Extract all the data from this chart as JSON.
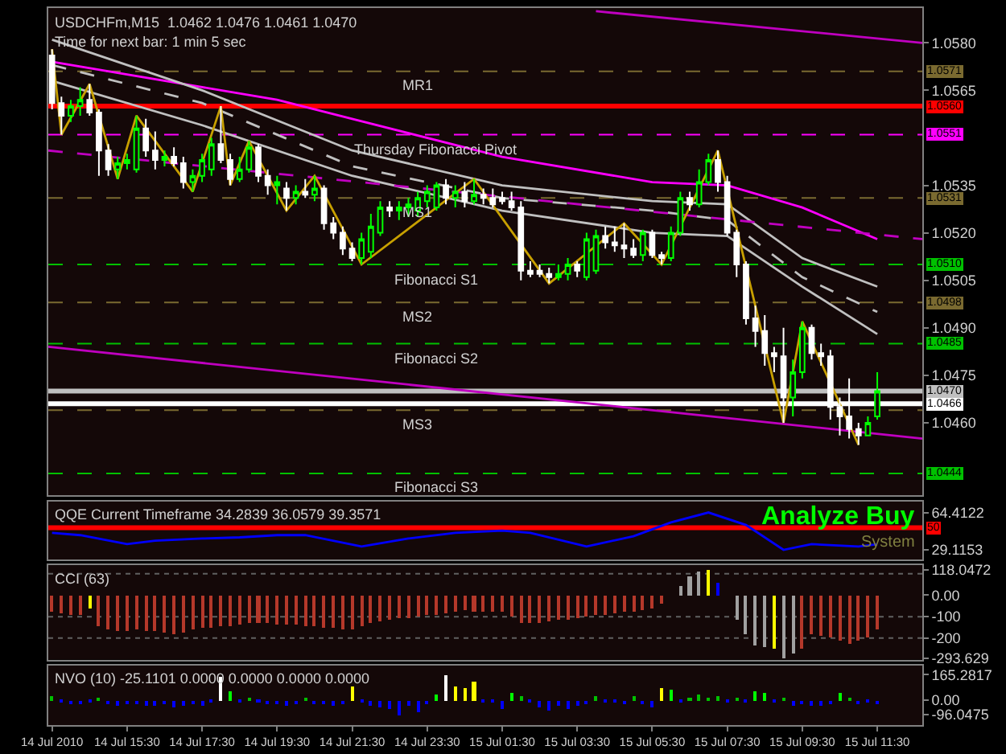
{
  "chart_data": [
    {
      "type": "candlestick",
      "title": "USDCHFm,M15  1.0462 1.0476 1.0461 1.0470",
      "subtitle": "Time for next bar: 1 min 5 sec",
      "x": [
        "2010-07-14T13:30",
        "2010-07-14T13:45",
        "2010-07-14T14:00",
        "2010-07-14T14:15",
        "2010-07-14T14:30",
        "2010-07-14T14:45",
        "2010-07-14T15:00",
        "2010-07-14T15:15",
        "2010-07-14T15:30",
        "2010-07-14T15:45",
        "2010-07-14T16:00",
        "2010-07-14T16:15",
        "2010-07-14T16:30",
        "2010-07-14T16:45",
        "2010-07-14T17:00",
        "2010-07-14T17:15",
        "2010-07-14T17:30",
        "2010-07-14T17:45",
        "2010-07-14T18:00",
        "2010-07-14T18:15",
        "2010-07-14T18:30",
        "2010-07-14T18:45",
        "2010-07-14T19:00",
        "2010-07-14T19:15",
        "2010-07-14T19:30",
        "2010-07-14T19:45",
        "2010-07-14T20:00",
        "2010-07-14T20:15",
        "2010-07-14T20:30",
        "2010-07-14T20:45",
        "2010-07-14T21:00",
        "2010-07-14T21:15",
        "2010-07-14T21:30",
        "2010-07-14T21:45",
        "2010-07-14T22:00",
        "2010-07-14T22:15",
        "2010-07-14T22:30",
        "2010-07-14T22:45",
        "2010-07-14T23:00",
        "2010-07-14T23:15",
        "2010-07-14T23:30",
        "2010-07-14T23:45",
        "2010-07-15T00:00",
        "2010-07-15T00:15",
        "2010-07-15T00:30",
        "2010-07-15T00:45",
        "2010-07-15T01:00",
        "2010-07-15T01:15",
        "2010-07-15T01:30",
        "2010-07-15T01:45",
        "2010-07-15T02:00",
        "2010-07-15T02:15",
        "2010-07-15T02:30",
        "2010-07-15T02:45",
        "2010-07-15T03:00",
        "2010-07-15T03:15",
        "2010-07-15T03:30",
        "2010-07-15T03:45",
        "2010-07-15T04:00",
        "2010-07-15T04:15",
        "2010-07-15T04:30",
        "2010-07-15T04:45",
        "2010-07-15T05:00",
        "2010-07-15T05:15",
        "2010-07-15T05:30",
        "2010-07-15T05:45",
        "2010-07-15T06:00",
        "2010-07-15T06:15",
        "2010-07-15T06:30",
        "2010-07-15T06:45",
        "2010-07-15T07:00",
        "2010-07-15T07:15",
        "2010-07-15T07:30",
        "2010-07-15T07:45",
        "2010-07-15T08:00",
        "2010-07-15T08:15",
        "2010-07-15T08:30",
        "2010-07-15T08:45",
        "2010-07-15T09:00",
        "2010-07-15T09:15",
        "2010-07-15T09:30",
        "2010-07-15T09:45",
        "2010-07-15T10:00",
        "2010-07-15T10:15",
        "2010-07-15T10:30",
        "2010-07-15T10:45",
        "2010-07-15T11:00",
        "2010-07-15T11:15",
        "2010-07-15T11:30"
      ],
      "ohlc": [
        [
          1.0576,
          1.0578,
          1.0559,
          1.0561
        ],
        [
          1.0561,
          1.0563,
          1.0551,
          1.0557
        ],
        [
          1.0557,
          1.0562,
          1.0555,
          1.056
        ],
        [
          1.056,
          1.0566,
          1.0557,
          1.0562
        ],
        [
          1.0562,
          1.0567,
          1.0557,
          1.0558
        ],
        [
          1.0558,
          1.0559,
          1.0538,
          1.0546
        ],
        [
          1.0546,
          1.0548,
          1.0538,
          1.054
        ],
        [
          1.054,
          1.0544,
          1.0537,
          1.0542
        ],
        [
          1.0542,
          1.0545,
          1.054,
          1.0543
        ],
        [
          1.054,
          1.0557,
          1.0539,
          1.0553
        ],
        [
          1.0553,
          1.0556,
          1.0544,
          1.0546
        ],
        [
          1.0546,
          1.0552,
          1.054,
          1.0543
        ],
        [
          1.0543,
          1.0546,
          1.0541,
          1.0544
        ],
        [
          1.0544,
          1.0547,
          1.0541,
          1.0542
        ],
        [
          1.0542,
          1.0544,
          1.0534,
          1.0536
        ],
        [
          1.0536,
          1.054,
          1.0533,
          1.0538
        ],
        [
          1.0538,
          1.0545,
          1.0536,
          1.0543
        ],
        [
          1.054,
          1.055,
          1.0538,
          1.0548
        ],
        [
          1.0548,
          1.056,
          1.0542,
          1.0543
        ],
        [
          1.0543,
          1.0545,
          1.0535,
          1.0537
        ],
        [
          1.0537,
          1.0544,
          1.0536,
          1.054
        ],
        [
          1.054,
          1.0549,
          1.0539,
          1.0547
        ],
        [
          1.0547,
          1.0548,
          1.0536,
          1.0538
        ],
        [
          1.0538,
          1.054,
          1.0532,
          1.0535
        ],
        [
          1.0535,
          1.0538,
          1.0529,
          1.0536
        ],
        [
          1.0534,
          1.0536,
          1.0527,
          1.0531
        ],
        [
          1.0531,
          1.0535,
          1.0529,
          1.0533
        ],
        [
          1.0533,
          1.0537,
          1.0531,
          1.0532
        ],
        [
          1.0532,
          1.0538,
          1.053,
          1.0534
        ],
        [
          1.0534,
          1.0535,
          1.0521,
          1.0523
        ],
        [
          1.0523,
          1.0525,
          1.0518,
          1.052
        ],
        [
          1.052,
          1.0522,
          1.0513,
          1.0515
        ],
        [
          1.0515,
          1.0517,
          1.0511,
          1.0512
        ],
        [
          1.0512,
          1.052,
          1.051,
          1.0518
        ],
        [
          1.0514,
          1.0526,
          1.0512,
          1.0522
        ],
        [
          1.052,
          1.053,
          1.0519,
          1.0528
        ],
        [
          1.0528,
          1.053,
          1.0525,
          1.0527
        ],
        [
          1.0527,
          1.053,
          1.0524,
          1.0528
        ],
        [
          1.0528,
          1.0531,
          1.0525,
          1.0529
        ],
        [
          1.0527,
          1.0533,
          1.0525,
          1.0531
        ],
        [
          1.053,
          1.0535,
          1.0528,
          1.0533
        ],
        [
          1.0528,
          1.0536,
          1.0527,
          1.0535
        ],
        [
          1.0535,
          1.0537,
          1.0529,
          1.0531
        ],
        [
          1.0531,
          1.0535,
          1.0528,
          1.0533
        ],
        [
          1.0533,
          1.0536,
          1.0528,
          1.053
        ],
        [
          1.053,
          1.0537,
          1.0529,
          1.0532
        ],
        [
          1.0532,
          1.0534,
          1.0529,
          1.0531
        ],
        [
          1.0531,
          1.0534,
          1.0528,
          1.0529
        ],
        [
          1.0531,
          1.0533,
          1.0529,
          1.053
        ],
        [
          1.053,
          1.0533,
          1.0527,
          1.0528
        ],
        [
          1.0528,
          1.053,
          1.0505,
          1.0508
        ],
        [
          1.0508,
          1.0511,
          1.0506,
          1.0507
        ],
        [
          1.0508,
          1.051,
          1.0506,
          1.0507
        ],
        [
          1.0507,
          1.0509,
          1.0504,
          1.0506
        ],
        [
          1.0506,
          1.051,
          1.0505,
          1.0507
        ],
        [
          1.0507,
          1.0512,
          1.0505,
          1.051
        ],
        [
          1.051,
          1.0511,
          1.0506,
          1.0508
        ],
        [
          1.0506,
          1.052,
          1.0505,
          1.0518
        ],
        [
          1.0508,
          1.0521,
          1.0507,
          1.0519
        ],
        [
          1.0519,
          1.0522,
          1.0515,
          1.0517
        ],
        [
          1.0517,
          1.0522,
          1.0514,
          1.0516
        ],
        [
          1.0516,
          1.0523,
          1.0512,
          1.0515
        ],
        [
          1.0515,
          1.0518,
          1.0512,
          1.0513
        ],
        [
          1.0513,
          1.0521,
          1.0511,
          1.052
        ],
        [
          1.052,
          1.0521,
          1.0512,
          1.0513
        ],
        [
          1.0513,
          1.0514,
          1.051,
          1.0512
        ],
        [
          1.0512,
          1.0522,
          1.0511,
          1.052
        ],
        [
          1.052,
          1.0533,
          1.0519,
          1.0531
        ],
        [
          1.0531,
          1.0533,
          1.0527,
          1.0529
        ],
        [
          1.0529,
          1.054,
          1.0528,
          1.0536
        ],
        [
          1.0536,
          1.0545,
          1.0535,
          1.0543
        ],
        [
          1.0543,
          1.0546,
          1.0533,
          1.0536
        ],
        [
          1.0536,
          1.0538,
          1.0519,
          1.052
        ],
        [
          1.052,
          1.0521,
          1.0506,
          1.051
        ],
        [
          1.051,
          1.0511,
          1.0491,
          1.0493
        ],
        [
          1.0493,
          1.0497,
          1.0484,
          1.0489
        ],
        [
          1.0489,
          1.0494,
          1.0478,
          1.0482
        ],
        [
          1.0482,
          1.0484,
          1.0476,
          1.0481
        ],
        [
          1.0481,
          1.049,
          1.046,
          1.0468
        ],
        [
          1.0468,
          1.048,
          1.0462,
          1.0476
        ],
        [
          1.0476,
          1.0492,
          1.0474,
          1.049
        ],
        [
          1.049,
          1.0491,
          1.048,
          1.0482
        ],
        [
          1.0482,
          1.0485,
          1.0478,
          1.0481
        ],
        [
          1.0481,
          1.0483,
          1.0461,
          1.0465
        ],
        [
          1.0465,
          1.0468,
          1.0456,
          1.0462
        ],
        [
          1.0462,
          1.0474,
          1.0455,
          1.0458
        ],
        [
          1.0458,
          1.046,
          1.0453,
          1.0456
        ],
        [
          1.0456,
          1.0462,
          1.0456,
          1.046
        ],
        [
          1.0462,
          1.0476,
          1.0461,
          1.047
        ]
      ],
      "colors": [
        "#ffffff",
        "#ffffff",
        "#00ff00",
        "#00ff00",
        "#ffffff",
        "#ffffff",
        "#ffffff",
        "#00ff00",
        "#00ff00",
        "#00ff00",
        "#ffffff",
        "#ffffff",
        "#00ff00",
        "#ffffff",
        "#ffffff",
        "#00ff00",
        "#00ff00",
        "#00ff00",
        "#ffffff",
        "#ffffff",
        "#00ff00",
        "#00ff00",
        "#ffffff",
        "#ffffff",
        "#00ff00",
        "#ffffff",
        "#00ff00",
        "#ffffff",
        "#00ff00",
        "#ffffff",
        "#ffffff",
        "#ffffff",
        "#ffffff",
        "#00ff00",
        "#00ff00",
        "#00ff00",
        "#ffffff",
        "#00ff00",
        "#00ff00",
        "#00ff00",
        "#00ff00",
        "#00ff00",
        "#ffffff",
        "#00ff00",
        "#ffffff",
        "#00ff00",
        "#ffffff",
        "#ffffff",
        "#ffffff",
        "#ffffff",
        "#ffffff",
        "#ffffff",
        "#ffffff",
        "#ffffff",
        "#00ff00",
        "#00ff00",
        "#ffffff",
        "#00ff00",
        "#00ff00",
        "#ffffff",
        "#ffffff",
        "#ffffff",
        "#ffffff",
        "#00ff00",
        "#ffffff",
        "#ffffff",
        "#00ff00",
        "#00ff00",
        "#ffffff",
        "#00ff00",
        "#00ff00",
        "#ffffff",
        "#ffffff",
        "#ffffff",
        "#ffffff",
        "#ffffff",
        "#ffffff",
        "#ffffff",
        "#ffffff",
        "#00ff00",
        "#00ff00",
        "#ffffff",
        "#ffffff",
        "#ffffff",
        "#ffffff",
        "#ffffff",
        "#ffffff",
        "#00ff00",
        "#00ff00"
      ],
      "series": [
        {
          "type": "line",
          "color": "#ff00ff",
          "x": [
            "2010-07-14T13:30",
            "2010-07-14T17:30",
            "2010-07-14T19:30",
            "2010-07-14T21:30",
            "2010-07-15T01:30",
            "2010-07-15T05:30",
            "2010-07-15T07:30",
            "2010-07-15T09:30",
            "2010-07-15T11:30"
          ],
          "values": [
            1.0574,
            1.0566,
            1.0562,
            1.0556,
            1.0544,
            1.0536,
            1.0535,
            1.0528,
            1.0518
          ]
        },
        {
          "type": "line",
          "color": "#c0c0c0",
          "x": [
            "2010-07-14T13:30",
            "2010-07-14T17:30",
            "2010-07-14T21:30",
            "2010-07-15T01:30",
            "2010-07-15T05:30",
            "2010-07-15T07:30",
            "2010-07-15T09:30",
            "2010-07-15T11:30"
          ],
          "values": [
            1.0581,
            1.0565,
            1.0546,
            1.0535,
            1.053,
            1.0529,
            1.0512,
            1.0503
          ]
        },
        {
          "type": "line",
          "color": "#c0c0c0",
          "line_style": "dashed",
          "x": [
            "2010-07-14T13:30",
            "2010-07-14T17:30",
            "2010-07-14T21:30",
            "2010-07-15T01:30",
            "2010-07-15T05:30",
            "2010-07-15T07:30",
            "2010-07-15T09:30",
            "2010-07-15T11:30"
          ],
          "values": [
            1.0573,
            1.0561,
            1.0541,
            1.0531,
            1.0527,
            1.0524,
            1.0506,
            1.0495
          ]
        },
        {
          "type": "line",
          "color": "#c0c0c0",
          "x": [
            "2010-07-14T13:30",
            "2010-07-14T17:30",
            "2010-07-14T21:30",
            "2010-07-15T01:30",
            "2010-07-15T05:30",
            "2010-07-15T07:30",
            "2010-07-15T09:30",
            "2010-07-15T11:30"
          ],
          "values": [
            1.0568,
            1.0554,
            1.0538,
            1.0527,
            1.052,
            1.0519,
            1.0503,
            1.0488
          ]
        },
        {
          "type": "line",
          "color": "#c000c0",
          "x": [
            "2010-07-15T04:00",
            "2010-07-15T12:42"
          ],
          "values": [
            1.059,
            1.058
          ]
        },
        {
          "type": "line",
          "color": "#c000c0",
          "x": [
            "2010-07-14T13:24",
            "2010-07-15T12:42"
          ],
          "values": [
            1.0484,
            1.0455
          ]
        },
        {
          "type": "line",
          "color": "#c000c0",
          "line_style": "dashed",
          "x": [
            "2010-07-14T13:24",
            "2010-07-15T12:42"
          ],
          "values": [
            1.0546,
            1.0518
          ]
        },
        {
          "type": "line",
          "color": "#c8a000",
          "x": [
            "2010-07-14T13:30",
            "2010-07-14T13:45",
            "2010-07-14T14:30",
            "2010-07-14T15:15",
            "2010-07-14T15:45",
            "2010-07-14T17:15",
            "2010-07-14T18:00",
            "2010-07-14T18:15",
            "2010-07-14T18:45",
            "2010-07-14T19:45",
            "2010-07-14T20:30",
            "2010-07-14T21:45",
            "2010-07-15T00:45",
            "2010-07-15T02:45",
            "2010-07-15T04:45",
            "2010-07-15T05:45",
            "2010-07-15T07:15",
            "2010-07-15T09:00",
            "2010-07-15T09:30",
            "2010-07-15T11:00"
          ],
          "values": [
            1.0578,
            1.0551,
            1.0567,
            1.0537,
            1.0557,
            1.0533,
            1.056,
            1.0535,
            1.0549,
            1.0527,
            1.0538,
            1.051,
            1.0537,
            1.0504,
            1.0523,
            1.051,
            1.0546,
            1.046,
            1.0492,
            1.0453
          ]
        }
      ],
      "ref_lines": [
        {
          "axis": "y",
          "value": 1.0571,
          "label": "1.0571",
          "color": "#7a6a30",
          "line_style": "dashed"
        },
        {
          "axis": "y",
          "value": 1.056,
          "label": "1.0560",
          "color": "#ff0000",
          "line_style": "solid"
        },
        {
          "axis": "y",
          "value": 1.0551,
          "label": "1.0551",
          "color": "#ff00ff",
          "line_style": "dashed"
        },
        {
          "axis": "y",
          "value": 1.0531,
          "label": "1.0531",
          "color": "#7a6a30",
          "line_style": "dashed"
        },
        {
          "axis": "y",
          "value": 1.051,
          "label": "1.0510",
          "color": "#00c000",
          "line_style": "dashed"
        },
        {
          "axis": "y",
          "value": 1.0498,
          "label": "1.0498",
          "color": "#7a6a30",
          "line_style": "dashed"
        },
        {
          "axis": "y",
          "value": 1.0485,
          "label": "1.0485",
          "color": "#00c000",
          "line_style": "dashed"
        },
        {
          "axis": "y",
          "value": 1.047,
          "label": "1.0470",
          "color": "#c0c0c0",
          "line_style": "solid"
        },
        {
          "axis": "y",
          "value": 1.0466,
          "label": "1.0466",
          "color": "#ffffff",
          "line_style": "solid"
        },
        {
          "axis": "y",
          "value": 1.0464,
          "label": null,
          "color": "#7a6a30",
          "line_style": "dashed"
        },
        {
          "axis": "y",
          "value": 1.0444,
          "label": "1.0444",
          "color": "#00c000",
          "line_style": "dashed"
        }
      ],
      "annotations": [
        {
          "text": "MR1",
          "x": "2010-07-14T23:15",
          "y": 1.0571
        },
        {
          "text": "Thursday Fibonacci Pivot",
          "x": "2010-07-14T23:45",
          "y": 1.0551
        },
        {
          "text": "MS1",
          "x": "2010-07-14T23:15",
          "y": 1.0531
        },
        {
          "text": "Fibonacci S1",
          "x": "2010-07-14T23:45",
          "y": 1.051
        },
        {
          "text": "MS2",
          "x": "2010-07-14T23:15",
          "y": 1.0498
        },
        {
          "text": "Fibonacci S2",
          "x": "2010-07-14T23:45",
          "y": 1.0485
        },
        {
          "text": "MS3",
          "x": "2010-07-14T23:15",
          "y": 1.0464
        },
        {
          "text": "Fibonacci S3",
          "x": "2010-07-14T23:45",
          "y": 1.0444
        }
      ],
      "xlim": [
        "2010-07-14T13:24",
        "2010-07-15T12:42"
      ],
      "ylim": [
        1.0437,
        1.0591
      ],
      "yticks": [
        {
          "value": 1.058,
          "label": "1.0580"
        },
        {
          "value": 1.0565,
          "label": "1.0565"
        },
        {
          "value": 1.0535,
          "label": "1.0535"
        },
        {
          "value": 1.052,
          "label": "1.0520"
        },
        {
          "value": 1.0505,
          "label": "1.0505"
        },
        {
          "value": 1.049,
          "label": "1.0490"
        },
        {
          "value": 1.0475,
          "label": "1.0475"
        },
        {
          "value": 1.046,
          "label": "1.0460"
        }
      ],
      "tick_labels": "y"
    },
    {
      "type": "line",
      "title": "QQE Current Timeframe 34.2839 36.0579 39.3571",
      "color": "#0000ff",
      "x": [
        "2010-07-14T13:30",
        "2010-07-14T14:15",
        "2010-07-14T15:30",
        "2010-07-14T16:15",
        "2010-07-14T17:30",
        "2010-07-14T18:30",
        "2010-07-14T19:30",
        "2010-07-14T20:15",
        "2010-07-14T21:45",
        "2010-07-14T23:00",
        "2010-07-15T00:15",
        "2010-07-15T01:30",
        "2010-07-15T02:15",
        "2010-07-15T03:45",
        "2010-07-15T05:00",
        "2010-07-15T06:00",
        "2010-07-15T07:00",
        "2010-07-15T08:00",
        "2010-07-15T09:00",
        "2010-07-15T09:45",
        "2010-07-15T11:00",
        "2010-07-15T11:30"
      ],
      "values": [
        45.2,
        43.0,
        34.5,
        37.7,
        39.8,
        40.9,
        43.0,
        43.0,
        32.3,
        39.8,
        45.2,
        47.3,
        45.2,
        32.3,
        41.9,
        55.0,
        64.4,
        52.6,
        29.1,
        34.5,
        32.3,
        34.3
      ],
      "ref_lines": [
        {
          "axis": "y",
          "value": 50,
          "label": "50",
          "color": "#ff0000",
          "line_style": "solid"
        }
      ],
      "annotations": [
        "Analyze Buy",
        "System"
      ],
      "xlim": [
        "2010-07-14T13:24",
        "2010-07-15T12:42"
      ],
      "ylim": [
        20,
        75
      ],
      "yticks": [
        64.4122,
        29.1153
      ],
      "tick_labels": "y"
    },
    {
      "type": "bar",
      "title": "CCI (63)",
      "x": [
        "2010-07-14T13:30",
        "2010-07-14T13:45",
        "2010-07-14T14:00",
        "2010-07-14T14:15",
        "2010-07-14T14:30",
        "2010-07-14T14:45",
        "2010-07-14T15:00",
        "2010-07-14T15:15",
        "2010-07-14T15:30",
        "2010-07-14T15:45",
        "2010-07-14T16:00",
        "2010-07-14T16:15",
        "2010-07-14T16:30",
        "2010-07-14T16:45",
        "2010-07-14T17:00",
        "2010-07-14T17:15",
        "2010-07-14T17:30",
        "2010-07-14T17:45",
        "2010-07-14T18:00",
        "2010-07-14T18:15",
        "2010-07-14T18:30",
        "2010-07-14T18:45",
        "2010-07-14T19:00",
        "2010-07-14T19:15",
        "2010-07-14T19:30",
        "2010-07-14T19:45",
        "2010-07-14T20:00",
        "2010-07-14T20:15",
        "2010-07-14T20:30",
        "2010-07-14T20:45",
        "2010-07-14T21:00",
        "2010-07-14T21:15",
        "2010-07-14T21:30",
        "2010-07-14T21:45",
        "2010-07-14T22:00",
        "2010-07-14T22:15",
        "2010-07-14T22:30",
        "2010-07-14T22:45",
        "2010-07-14T23:00",
        "2010-07-14T23:15",
        "2010-07-14T23:30",
        "2010-07-14T23:45",
        "2010-07-15T00:00",
        "2010-07-15T00:15",
        "2010-07-15T00:30",
        "2010-07-15T00:45",
        "2010-07-15T01:00",
        "2010-07-15T01:15",
        "2010-07-15T01:30",
        "2010-07-15T01:45",
        "2010-07-15T02:00",
        "2010-07-15T02:15",
        "2010-07-15T02:30",
        "2010-07-15T02:45",
        "2010-07-15T03:00",
        "2010-07-15T03:15",
        "2010-07-15T03:30",
        "2010-07-15T03:45",
        "2010-07-15T04:00",
        "2010-07-15T04:15",
        "2010-07-15T04:30",
        "2010-07-15T04:45",
        "2010-07-15T05:00",
        "2010-07-15T05:15",
        "2010-07-15T05:30",
        "2010-07-15T05:45",
        "2010-07-15T06:00",
        "2010-07-15T06:15",
        "2010-07-15T06:30",
        "2010-07-15T06:45",
        "2010-07-15T07:00",
        "2010-07-15T07:15",
        "2010-07-15T07:30",
        "2010-07-15T07:45",
        "2010-07-15T08:00",
        "2010-07-15T08:15",
        "2010-07-15T08:30",
        "2010-07-15T08:45",
        "2010-07-15T09:00",
        "2010-07-15T09:15",
        "2010-07-15T09:30",
        "2010-07-15T09:45",
        "2010-07-15T10:00",
        "2010-07-15T10:15",
        "2010-07-15T10:30",
        "2010-07-15T10:45",
        "2010-07-15T11:00",
        "2010-07-15T11:15",
        "2010-07-15T11:30"
      ],
      "values": [
        -80,
        -85,
        -90,
        -93,
        -60,
        -147,
        -160,
        -167,
        -165,
        -160,
        -165,
        -167,
        -172,
        -180,
        -175,
        -160,
        -155,
        -150,
        -148,
        -147,
        -140,
        -127,
        -130,
        -133,
        -135,
        -138,
        -140,
        -142,
        -145,
        -150,
        -155,
        -158,
        -160,
        -145,
        -127,
        -120,
        -115,
        -110,
        -107,
        -100,
        -95,
        -93,
        -88,
        -80,
        -73,
        -75,
        -78,
        -80,
        -80,
        -100,
        -133,
        -130,
        -127,
        -122,
        -118,
        -112,
        -107,
        -100,
        -95,
        -90,
        -85,
        -80,
        -75,
        -70,
        -60,
        -40,
        0,
        45,
        87,
        110,
        118.0472,
        60,
        0,
        -113,
        -180,
        -233,
        -240,
        -253,
        -293.629,
        -270,
        -253,
        -180,
        -190,
        -200,
        -215,
        -227,
        -210,
        -200,
        -160
      ],
      "colors": [
        "#b5382a",
        "#b5382a",
        "#b5382a",
        "#b5382a",
        "#ffff00",
        "#b5382a",
        "#b5382a",
        "#b5382a",
        "#b5382a",
        "#b5382a",
        "#b5382a",
        "#b5382a",
        "#b5382a",
        "#b5382a",
        "#b5382a",
        "#b5382a",
        "#b5382a",
        "#b5382a",
        "#b5382a",
        "#b5382a",
        "#b5382a",
        "#b5382a",
        "#b5382a",
        "#b5382a",
        "#b5382a",
        "#b5382a",
        "#b5382a",
        "#b5382a",
        "#b5382a",
        "#b5382a",
        "#b5382a",
        "#b5382a",
        "#b5382a",
        "#b5382a",
        "#b5382a",
        "#b5382a",
        "#b5382a",
        "#b5382a",
        "#b5382a",
        "#b5382a",
        "#b5382a",
        "#b5382a",
        "#b5382a",
        "#b5382a",
        "#b5382a",
        "#b5382a",
        "#b5382a",
        "#b5382a",
        "#b5382a",
        "#b5382a",
        "#b5382a",
        "#b5382a",
        "#b5382a",
        "#b5382a",
        "#b5382a",
        "#b5382a",
        "#b5382a",
        "#b5382a",
        "#b5382a",
        "#b5382a",
        "#b5382a",
        "#b5382a",
        "#b5382a",
        "#b5382a",
        "#b5382a",
        "#b5382a",
        "#a0a0a0",
        "#a0a0a0",
        "#a0a0a0",
        "#a0a0a0",
        "#ffff00",
        "#0000ff",
        "#a0a0a0",
        "#a0a0a0",
        "#a0a0a0",
        "#a0a0a0",
        "#a0a0a0",
        "#ffff00",
        "#a0a0a0",
        "#a0a0a0",
        "#b5382a",
        "#b5382a",
        "#b5382a",
        "#b5382a",
        "#b5382a",
        "#b5382a",
        "#b5382a",
        "#b5382a",
        "#b5382a"
      ],
      "ref_lines": [
        {
          "axis": "y",
          "value": 100,
          "label": null,
          "color": "#606060",
          "line_style": "dotted"
        },
        {
          "axis": "y",
          "value": -100,
          "label": null,
          "color": "#606060",
          "line_style": "dotted"
        },
        {
          "axis": "y",
          "value": -200,
          "label": null,
          "color": "#606060",
          "line_style": "dotted"
        }
      ],
      "xlim": [
        "2010-07-14T13:24",
        "2010-07-15T12:42"
      ],
      "ylim": [
        -300,
        140
      ],
      "yticks": [
        118.0472,
        {
          "value": 0,
          "label": "0.00"
        },
        -100,
        -200,
        -293.629
      ],
      "tick_labels": "y"
    },
    {
      "type": "bar",
      "title": "NVO (10) -25.1101 0.0000 0.0000 0.0000 0.0000",
      "x": [
        "2010-07-14T13:30",
        "2010-07-14T13:45",
        "2010-07-14T14:00",
        "2010-07-14T14:15",
        "2010-07-14T14:30",
        "2010-07-14T14:45",
        "2010-07-14T15:00",
        "2010-07-14T15:15",
        "2010-07-14T15:30",
        "2010-07-14T15:45",
        "2010-07-14T16:00",
        "2010-07-14T16:15",
        "2010-07-14T16:30",
        "2010-07-14T16:45",
        "2010-07-14T17:00",
        "2010-07-14T17:15",
        "2010-07-14T17:30",
        "2010-07-14T17:45",
        "2010-07-14T18:00",
        "2010-07-14T18:15",
        "2010-07-14T18:30",
        "2010-07-14T18:45",
        "2010-07-14T19:00",
        "2010-07-14T19:15",
        "2010-07-14T19:30",
        "2010-07-14T19:45",
        "2010-07-14T20:00",
        "2010-07-14T20:15",
        "2010-07-14T20:30",
        "2010-07-14T20:45",
        "2010-07-14T21:00",
        "2010-07-14T21:15",
        "2010-07-14T21:30",
        "2010-07-14T21:45",
        "2010-07-14T22:00",
        "2010-07-14T22:15",
        "2010-07-14T22:30",
        "2010-07-14T22:45",
        "2010-07-14T23:00",
        "2010-07-14T23:15",
        "2010-07-14T23:30",
        "2010-07-14T23:45",
        "2010-07-15T00:00",
        "2010-07-15T00:15",
        "2010-07-15T00:30",
        "2010-07-15T00:45",
        "2010-07-15T01:00",
        "2010-07-15T01:15",
        "2010-07-15T01:30",
        "2010-07-15T01:45",
        "2010-07-15T02:00",
        "2010-07-15T02:15",
        "2010-07-15T02:30",
        "2010-07-15T02:45",
        "2010-07-15T03:00",
        "2010-07-15T03:15",
        "2010-07-15T03:30",
        "2010-07-15T03:45",
        "2010-07-15T04:00",
        "2010-07-15T04:15",
        "2010-07-15T04:30",
        "2010-07-15T04:45",
        "2010-07-15T05:00",
        "2010-07-15T05:15",
        "2010-07-15T05:30",
        "2010-07-15T05:45",
        "2010-07-15T06:00",
        "2010-07-15T06:15",
        "2010-07-15T06:30",
        "2010-07-15T06:45",
        "2010-07-15T07:00",
        "2010-07-15T07:15",
        "2010-07-15T07:30",
        "2010-07-15T07:45",
        "2010-07-15T08:00",
        "2010-07-15T08:15",
        "2010-07-15T08:30",
        "2010-07-15T08:45",
        "2010-07-15T09:00",
        "2010-07-15T09:15",
        "2010-07-15T09:30",
        "2010-07-15T09:45",
        "2010-07-15T10:00",
        "2010-07-15T10:15",
        "2010-07-15T10:30",
        "2010-07-15T10:45",
        "2010-07-15T11:00",
        "2010-07-15T11:15",
        "2010-07-15T11:30"
      ],
      "values": [
        25,
        -20,
        -25,
        -30,
        -20,
        15,
        -30,
        -35,
        -30,
        -25,
        -40,
        -35,
        -30,
        -45,
        -40,
        -30,
        -35,
        -20,
        150,
        60,
        -15,
        15,
        -20,
        -25,
        -30,
        -35,
        -25,
        20,
        -30,
        -25,
        -35,
        -30,
        95,
        -20,
        -35,
        -45,
        -60,
        -96.0475,
        -40,
        -75,
        -30,
        40,
        165.2817,
        95,
        75,
        120,
        -15,
        -20,
        -60,
        50,
        25,
        -20,
        -50,
        -70,
        -40,
        -55,
        -40,
        -30,
        25,
        -15,
        -20,
        -25,
        30,
        -30,
        -50,
        80,
        70,
        -15,
        20,
        40,
        15,
        25,
        -20,
        15,
        -15,
        60,
        45,
        -15,
        15,
        -40,
        -30,
        -40,
        -35,
        -25,
        45,
        15,
        -30,
        -20,
        -25.1101
      ],
      "colors": [
        "#00c000",
        "#0000ff",
        "#0000ff",
        "#0000ff",
        "#0000ff",
        "#00c000",
        "#0000ff",
        "#0000ff",
        "#0000ff",
        "#0000ff",
        "#0000ff",
        "#0000ff",
        "#0000ff",
        "#0000ff",
        "#0000ff",
        "#0000ff",
        "#0000ff",
        "#0000ff",
        "#ffffff",
        "#00ff00",
        "#0000ff",
        "#00c000",
        "#0000ff",
        "#0000ff",
        "#0000ff",
        "#0000ff",
        "#0000ff",
        "#00c000",
        "#0000ff",
        "#0000ff",
        "#0000ff",
        "#0000ff",
        "#ffff00",
        "#0000ff",
        "#0000ff",
        "#0000ff",
        "#0000ff",
        "#0000ff",
        "#0000ff",
        "#0000ff",
        "#0000ff",
        "#00ff00",
        "#ffffff",
        "#ffff00",
        "#ffff00",
        "#ffff00",
        "#0000ff",
        "#0000ff",
        "#0000ff",
        "#00ff00",
        "#00c000",
        "#0000ff",
        "#0000ff",
        "#0000ff",
        "#0000ff",
        "#0000ff",
        "#0000ff",
        "#0000ff",
        "#00c000",
        "#0000ff",
        "#0000ff",
        "#0000ff",
        "#00c000",
        "#0000ff",
        "#0000ff",
        "#ffff00",
        "#00ff00",
        "#0000ff",
        "#00c000",
        "#00c000",
        "#00c000",
        "#00c000",
        "#0000ff",
        "#00c000",
        "#0000ff",
        "#00ff00",
        "#00ff00",
        "#0000ff",
        "#00c000",
        "#0000ff",
        "#0000ff",
        "#0000ff",
        "#0000ff",
        "#0000ff",
        "#00ff00",
        "#00c000",
        "#0000ff",
        "#0000ff",
        "#0000ff"
      ],
      "xlim": [
        "2010-07-14T13:24",
        "2010-07-15T12:42"
      ],
      "ylim": [
        -165,
        227
      ],
      "yticks": [
        165.2817,
        {
          "value": 0,
          "label": "0.00"
        },
        -96.0475
      ],
      "xticks": [
        {
          "value": "2010-07-14T13:30",
          "label": "14 Jul 2010"
        },
        {
          "value": "2010-07-14T15:30",
          "label": "14 Jul 15:30"
        },
        {
          "value": "2010-07-14T17:30",
          "label": "14 Jul 17:30"
        },
        {
          "value": "2010-07-14T19:30",
          "label": "14 Jul 19:30"
        },
        {
          "value": "2010-07-14T21:30",
          "label": "14 Jul 21:30"
        },
        {
          "value": "2010-07-14T23:30",
          "label": "14 Jul 23:30"
        },
        {
          "value": "2010-07-15T01:30",
          "label": "15 Jul 01:30"
        },
        {
          "value": "2010-07-15T03:30",
          "label": "15 Jul 03:30"
        },
        {
          "value": "2010-07-15T05:30",
          "label": "15 Jul 05:30"
        },
        {
          "value": "2010-07-15T07:30",
          "label": "15 Jul 07:30"
        },
        {
          "value": "2010-07-15T09:30",
          "label": "15 Jul 09:30"
        },
        {
          "value": "2010-07-15T11:30",
          "label": "15 Jul 11:30"
        }
      ]
    }
  ]
}
